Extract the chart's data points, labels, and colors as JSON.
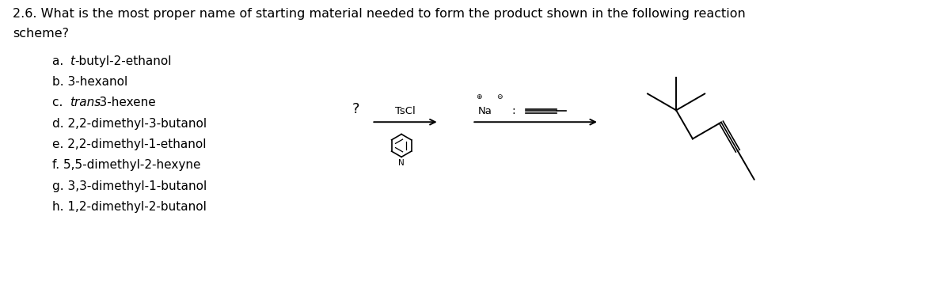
{
  "title_line1": "2.6. What is the most proper name of starting material needed to form the product shown in the following reaction",
  "title_line2": "scheme?",
  "choices": [
    [
      "a. ",
      "t",
      "-butyl-2-ethanol"
    ],
    [
      "b. 3-hexanol",
      "",
      ""
    ],
    [
      "c. ",
      "trans",
      "-3-hexene"
    ],
    [
      "d. 2,2-dimethyl-3-butanol",
      "",
      ""
    ],
    [
      "e. 2,2-dimethyl-1-ethanol",
      "",
      ""
    ],
    [
      "f. 5,5-dimethyl-2-hexyne",
      "",
      ""
    ],
    [
      "g. 3,3-dimethyl-1-butanol",
      "",
      ""
    ],
    [
      "h. 1,2-dimethyl-2-butanol",
      "",
      ""
    ]
  ],
  "bg_color": "#ffffff",
  "text_color": "#000000",
  "fontsize_title": 11.5,
  "fontsize_choices": 11
}
